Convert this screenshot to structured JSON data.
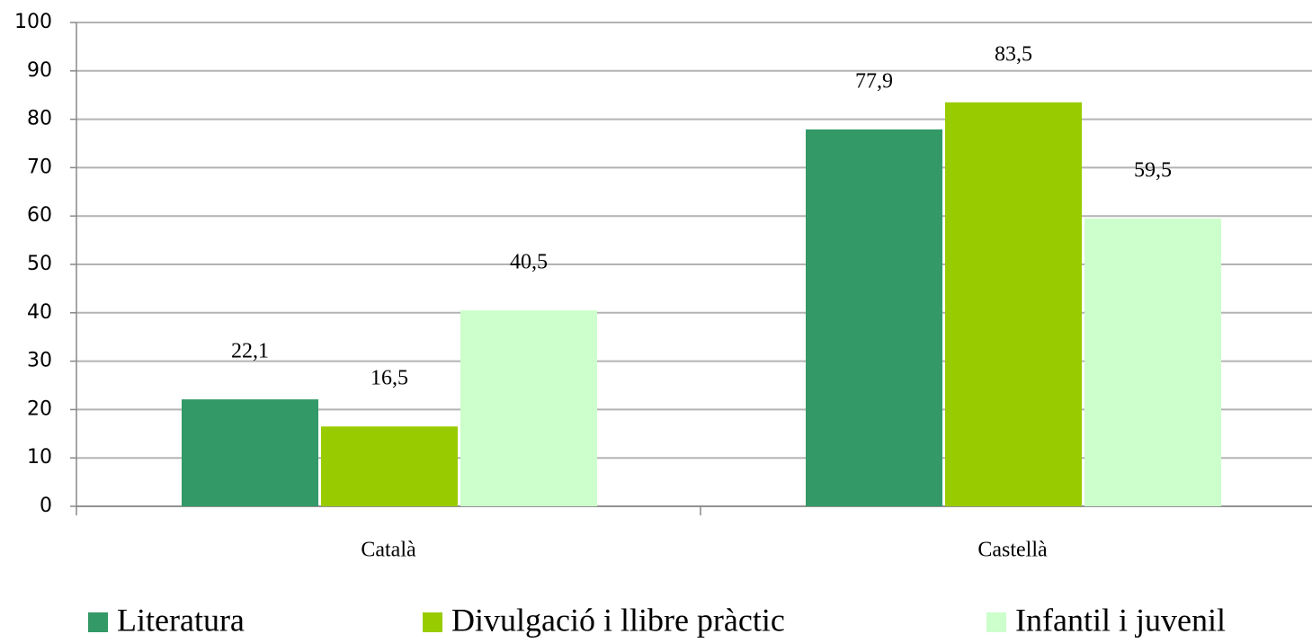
{
  "chart_data": {
    "type": "bar",
    "categories": [
      "Català",
      "Castellà"
    ],
    "series": [
      {
        "name": "Literatura",
        "color": "#339966",
        "values": [
          22.1,
          77.9
        ],
        "value_labels": [
          "22,1",
          "77,9"
        ]
      },
      {
        "name": "Divulgació i llibre pràctic",
        "color": "#99cc00",
        "values": [
          16.5,
          83.5
        ],
        "value_labels": [
          "16,5",
          "83,5"
        ]
      },
      {
        "name": "Infantil i juvenil",
        "color": "#ccffcc",
        "values": [
          40.5,
          59.5
        ],
        "value_labels": [
          "40,5",
          "59,5"
        ]
      }
    ],
    "ylim": [
      0,
      100
    ],
    "yticks": [
      0,
      10,
      20,
      30,
      40,
      50,
      60,
      70,
      80,
      90,
      100
    ],
    "grid": true,
    "legend": "bottom"
  }
}
